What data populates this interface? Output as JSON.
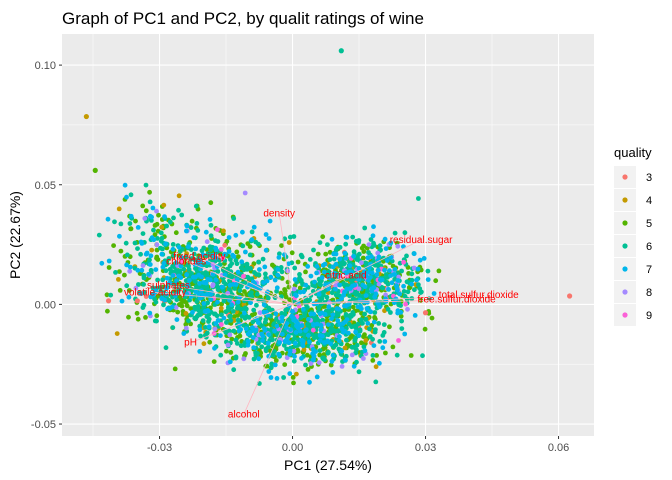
{
  "chart_data": {
    "type": "scatter",
    "title": "Graph of PC1 and PC2, by qualit ratings of wine",
    "xlabel": "PC1 (27.54%)",
    "ylabel": "PC2 (22.67%)",
    "xlim": [
      -0.052,
      0.068
    ],
    "ylim": [
      -0.055,
      0.113
    ],
    "x_ticks": [
      -0.03,
      0.0,
      0.03,
      0.06
    ],
    "x_tick_labels": [
      "-0.03",
      "0.00",
      "0.03",
      "0.06"
    ],
    "y_ticks": [
      -0.05,
      0.0,
      0.05,
      0.1
    ],
    "y_tick_labels": [
      "-0.05",
      "0.00",
      "0.05",
      "0.10"
    ],
    "grid": true,
    "legend": {
      "title": "quality",
      "position": "right",
      "entries": [
        {
          "label": "3",
          "color": "#F8766D"
        },
        {
          "label": "4",
          "color": "#C49A00"
        },
        {
          "label": "5",
          "color": "#53B400"
        },
        {
          "label": "6",
          "color": "#00C094"
        },
        {
          "label": "7",
          "color": "#00B6EB"
        },
        {
          "label": "8",
          "color": "#A58AFF"
        },
        {
          "label": "9",
          "color": "#FB61D7"
        }
      ]
    },
    "loadings": [
      {
        "name": "density",
        "x": -0.003,
        "y": 0.038
      },
      {
        "name": "residual.sugar",
        "x": 0.029,
        "y": 0.027
      },
      {
        "name": "fixed.acidity",
        "x": -0.021,
        "y": 0.02
      },
      {
        "name": "chlorides",
        "x": -0.024,
        "y": 0.018
      },
      {
        "name": "citric.acid",
        "x": 0.012,
        "y": 0.012
      },
      {
        "name": "sulphates",
        "x": -0.028,
        "y": 0.008
      },
      {
        "name": "volatile.acidity",
        "x": -0.031,
        "y": 0.005
      },
      {
        "name": "total.sulfur.dioxide",
        "x": 0.042,
        "y": 0.004
      },
      {
        "name": "free.sulfur.dioxide",
        "x": 0.037,
        "y": 0.002
      },
      {
        "name": "pH",
        "x": -0.023,
        "y": -0.016
      },
      {
        "name": "alcohol",
        "x": -0.011,
        "y": -0.046
      }
    ],
    "notable_points": [
      {
        "x": -0.0465,
        "y": 0.0785,
        "quality": "4"
      },
      {
        "x": -0.0445,
        "y": 0.056,
        "quality": "5"
      },
      {
        "x": 0.011,
        "y": 0.106,
        "quality": "6"
      },
      {
        "x": 0.0625,
        "y": 0.0035,
        "quality": "3"
      },
      {
        "x": -0.0415,
        "y": 0.0015,
        "quality": "3"
      },
      {
        "x": 0.03,
        "y": -0.0035,
        "quality": "3"
      },
      {
        "x": -0.035,
        "y": 0.0015,
        "quality": "3"
      }
    ]
  }
}
